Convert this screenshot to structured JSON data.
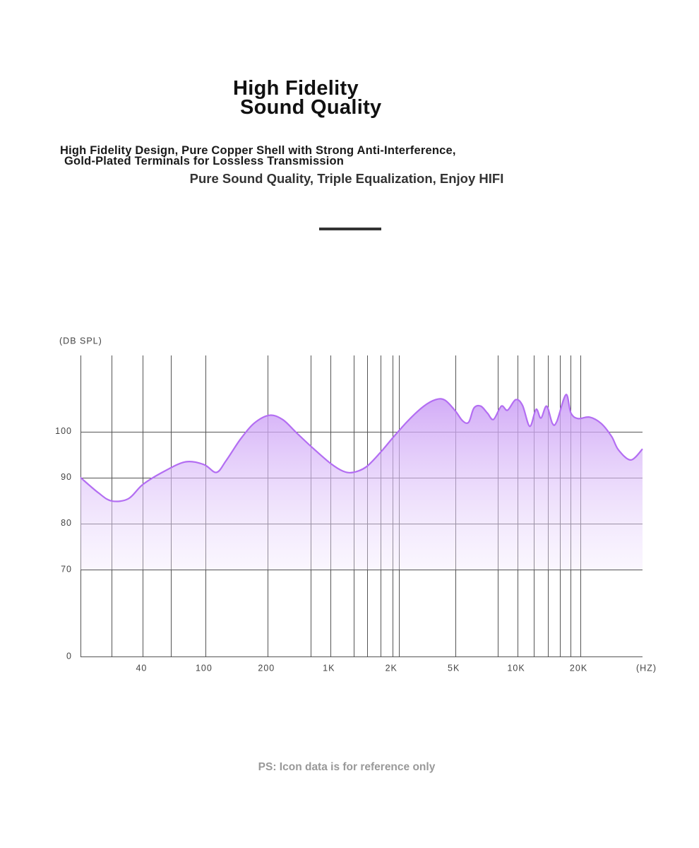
{
  "header": {
    "title_lines": [
      "High Fidelity",
      "Sound Quality"
    ],
    "subtitle_lines": [
      "High Fidelity Design, Pure Copper Shell with Strong Anti-Interference,",
      "Gold-Plated Terminals for Lossless Transmission"
    ],
    "tagline": "Pure Sound Quality, Triple Equalization, Enjoy HIFI"
  },
  "chart_data": {
    "type": "line",
    "y_label": "(DB SPL)",
    "x_label": "(HZ)",
    "xscale": "log",
    "x": [
      10,
      15,
      20,
      29,
      40,
      55,
      75,
      98,
      113,
      126,
      147,
      171,
      207,
      292,
      414,
      605,
      1000,
      1150,
      1285,
      1490,
      1750,
      2000,
      2500,
      3135,
      3750,
      4300,
      5000,
      5430,
      5810,
      6160,
      6640,
      7150,
      7650,
      8350,
      8940,
      9780,
      10550,
      11440,
      12270,
      12950,
      13800,
      14730,
      15460,
      17100,
      18070,
      19560,
      21290,
      22960,
      24550,
      25660,
      27800,
      30000
    ],
    "series": [
      {
        "color": "#b36ef2",
        "values": [
          90,
          86.6,
          84.9,
          85.4,
          88.5,
          91.4,
          93.4,
          92.8,
          91.1,
          93.7,
          98.2,
          101.7,
          103.5,
          102.6,
          99.8,
          96.8,
          93.1,
          91.4,
          91.1,
          92.3,
          95.5,
          98.6,
          102.3,
          105.4,
          106.9,
          106.8,
          104.5,
          102.3,
          102,
          105.1,
          105.5,
          104,
          102.6,
          105.5,
          104.6,
          106.9,
          105.7,
          101.1,
          104.8,
          102.9,
          105.5,
          101.7,
          102.2,
          108,
          104,
          102.8,
          103.1,
          101.7,
          98.9,
          96,
          93.8,
          96.2
        ]
      }
    ],
    "xlim": [
      10,
      30000
    ],
    "xticks": [
      40,
      100,
      200,
      {
        "value": 1000,
        "label": "1K"
      },
      {
        "value": 2000,
        "label": "2K"
      },
      {
        "value": 5000,
        "label": "5K"
      },
      {
        "value": 10000,
        "label": "10K"
      },
      {
        "value": 20000,
        "label": "20K"
      }
    ],
    "xgrid": [
      20,
      60,
      600,
      1300,
      1500,
      1750,
      2200,
      8000,
      12000,
      14000,
      16000,
      18000
    ],
    "ylim": [
      0,
      116.5
    ],
    "yticks": [
      0,
      70,
      80,
      90,
      100
    ],
    "grid": true,
    "fill": true
  },
  "footer": {
    "note": "PS: Icon data is for reference only"
  }
}
